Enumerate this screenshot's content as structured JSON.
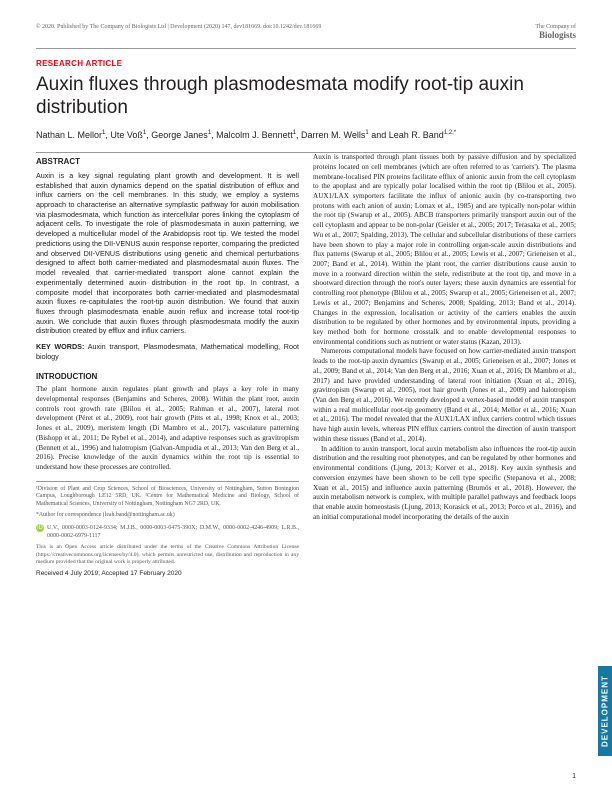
{
  "header": {
    "copyright": "© 2020. Published by The Company of Biologists Ltd | Development (2020) 147, dev181669. doi:10.1242/dev.181669",
    "publisher_top": "The Company of",
    "publisher_bold": "Biologists"
  },
  "article_type": "RESEARCH ARTICLE",
  "title": "Auxin fluxes through plasmodesmata modify root-tip auxin distribution",
  "authors_html": "Nathan L. Mellor<sup>1</sup>, Ute Voß<sup>1</sup>, George Janes<sup>1</sup>, Malcolm J. Bennett<sup>1</sup>, Darren M. Wells<sup>1</sup> and Leah R. Band<sup>1,2,*</sup>",
  "abstract": {
    "head": "ABSTRACT",
    "body": "Auxin is a key signal regulating plant growth and development. It is well established that auxin dynamics depend on the spatial distribution of efflux and influx carriers on the cell membranes. In this study, we employ a systems approach to characterise an alternative symplastic pathway for auxin mobilisation via plasmodesmata, which function as intercellular pores linking the cytoplasm of adjacent cells. To investigate the role of plasmodesmata in auxin patterning, we developed a multicellular model of the Arabidopsis root tip. We tested the model predictions using the DII-VENUS auxin response reporter, comparing the predicted and observed DII-VENUS distributions using genetic and chemical perturbations designed to affect both carrier-mediated and plasmodesmatal auxin fluxes. The model revealed that carrier-mediated transport alone cannot explain the experimentally determined auxin distribution in the root tip. In contrast, a composite model that incorporates both carrier-mediated and plasmodesmatal auxin fluxes re-capitulates the root-tip auxin distribution. We found that auxin fluxes through plasmodesmata enable auxin reflux and increase total root-tip auxin. We conclude that auxin fluxes through plasmodesmata modify the auxin distribution created by efflux and influx carriers."
  },
  "keywords": {
    "label": "KEY WORDS:",
    "list": "Auxin transport, Plasmodesmata, Mathematical modelling, Root biology"
  },
  "intro_head": "INTRODUCTION",
  "intro_p1": "The plant hormone auxin regulates plant growth and plays a key role in many developmental responses (Benjamins and Scheres, 2008). Within the plant root, auxin controls root growth rate (Blilou et al., 2005; Rahman et al., 2007), lateral root development (Péret et al., 2009), root hair growth (Pitts et al., 1998; Knox et al., 2003; Jones et al., 2009), meristem length (Di Mambro et al., 2017), vasculature patterning (Bishopp et al., 2011; De Rybel et al., 2014), and adaptive responses such as gravitropism (Bennett et al., 1996) and halotropism (Galvan-Ampudia et al., 2013; Van den Berg et al., 2016). Precise knowledge of the auxin dynamics within the root tip is essential to understand how these processes are controlled.",
  "col2_p1": "Auxin is transported through plant tissues both by passive diffusion and by specialized proteins located on cell membranes (which are often referred to as 'carriers'). The plasma membrane-localised PIN proteins facilitate efflux of anionic auxin from the cell cytoplasm to the apoplast and are typically polar localised within the root tip (Blilou et al., 2005). AUX1/LAX symporters facilitate the influx of anionic auxin (by co-transporting two protons with each anion of auxin; Lomax et al., 1985) and are typically non-polar within the root tip (Swarup et al., 2005). ABCB transporters primarily transport auxin out of the cell cytoplasm and appear to be non-polar (Geisler et al., 2005; 2017; Terasaka et al., 2005; Wu et al., 2007; Spalding, 2013). The cellular and subcellular distributions of these carriers have been shown to play a major role in controlling organ-scale auxin distributions and flux patterns (Swarup et al., 2005; Blilou et al., 2005; Lewis et al., 2007; Grieneisen et al., 2007; Band et al., 2014). Within the plant root, the carrier distributions cause auxin to move in a rootward direction within the stele, redistribute at the root tip, and move in a shootward direction through the root's outer layers; these auxin dynamics are essential for controlling root phenotype (Blilou et al., 2005; Swarup et al., 2005; Grieneisen et al., 2007; Lewis et al., 2007; Benjamins and Scheres, 2008; Spalding, 2013; Band et al., 2014). Changes in the expression, localisation or activity of the carriers enables the auxin distribution to be regulated by other hormones and by environmental inputs, providing a key method both for hormone crosstalk and to enable developmental responses to environmental conditions such as nutrient or water status (Kazan, 2013).",
  "col2_p2": "Numerous computational models have focused on how carrier-mediated auxin transport leads to the root-tip auxin dynamics (Swarup et al., 2005; Grieneisen et al., 2007; Jones et al., 2009; Band et al., 2014; Van den Berg et al., 2016; Xuan et al., 2016; Di Mambro et al., 2017) and have provided understanding of lateral root initiation (Xuan et al., 2016), gravitropism (Swarup et al., 2005), root hair growth (Jones et al., 2009) and halotropism (Van den Berg et al., 2016). We recently developed a vertex-based model of auxin transport within a real multicellular root-tip geometry (Band et al., 2014; Mellor et al., 2016; Xuan et al., 2016). The model revealed that the AUX1/LAX influx carriers control which tissues have high auxin levels, whereas PIN efflux carriers control the direction of auxin transport within these tissues (Band et al., 2014).",
  "col2_p3": "In addition to auxin transport, local auxin metabolism also influences the root-tip auxin distribution and the resulting root phenotypes, and can be regulated by other hormones and environmental conditions (Ljung, 2013; Korver et al., 2018). Key auxin synthesis and conversion enzymes have been shown to be cell type specific (Stepanova et al., 2008; Xuan et al., 2015) and influence auxin patterning (Brumós et al., 2018). However, the auxin metabolism network is complex, with multiple parallel pathways and feedback loops that enable auxin homeostasis (Ljung, 2013; Korasick et al., 2013; Porco et al., 2016), and an initial computational model incorporating the details of the auxin",
  "affiliations": "¹Division of Plant and Crop Sciences, School of Biosciences, University of Nottingham, Sutton Bonington Campus, Loughborough LE12 5RD, UK. ²Centre for Mathematical Medicine and Biology, School of Mathematical Sciences, University of Nottingham, Nottingham NG7 2RD, UK.",
  "corresponding": "*Author for correspondence (leah.band@nottingham.ac.uk)",
  "orcid": "U.V., 0000-0003-0124-9334; M.J.B., 0000-0003-0475-390X; D.M.W., 0000-0002-4246-4909; L.R.B., 0000-0002-6979-1117",
  "open_access": "This is an Open Access article distributed under the terms of the Creative Commons Attribution License (https://creativecommons.org/licenses/by/4.0), which permits unrestricted use, distribution and reproduction in any medium provided that the original work is properly attributed.",
  "received": "Received 4 July 2019; Accepted 17 February 2020",
  "side_tab": "DEVELOPMENT",
  "page_number": "1"
}
